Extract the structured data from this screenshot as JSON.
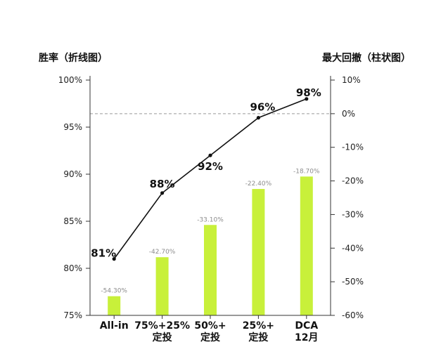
{
  "chart_data": {
    "type": "bar",
    "categories": [
      [
        "All-in"
      ],
      [
        "75%+25%",
        "定投"
      ],
      [
        "50%+",
        "定投"
      ],
      [
        "25%+",
        "定投"
      ],
      [
        "DCA",
        "12月"
      ]
    ],
    "ylabel_left": "胜率（折线图）",
    "ylabel_right": "最大回撤（柱状图）",
    "ylim_left": [
      75,
      100
    ],
    "ylim_right": [
      -60,
      10
    ],
    "yticks_left": {
      "values": [
        100,
        95,
        90,
        85,
        80,
        75
      ],
      "labels": [
        "100%",
        "95%",
        "90%",
        "85%",
        "80%",
        "75%"
      ]
    },
    "yticks_right": {
      "values": [
        10,
        0,
        -10,
        -20,
        -30,
        -40,
        -50,
        -60
      ],
      "labels": [
        "10%",
        "0%",
        "-10%",
        "-20%",
        "-30%",
        "-40%",
        "-50%",
        "-60%"
      ]
    },
    "series": [
      {
        "type": "line",
        "axis": "left",
        "values": [
          81,
          88,
          92,
          96,
          98
        ],
        "labels": [
          "81%",
          "88%",
          "92%",
          "96%",
          "98%"
        ]
      },
      {
        "type": "bar",
        "axis": "right",
        "values": [
          -54.3,
          -42.7,
          -33.1,
          -22.4,
          -18.7
        ],
        "labels": [
          "-54.30%",
          "-42.70%",
          "-33.10%",
          "-22.40%",
          "-18.70%"
        ]
      }
    ],
    "reference_line": {
      "axis": "right",
      "value": 0,
      "style": "dashed"
    },
    "grid": false,
    "legend": "none"
  },
  "colors": {
    "background": "#ffffff",
    "bar": "#c8f03a",
    "line": "#111111",
    "point": "#111111",
    "axis": "#333333",
    "bar_label": "#8c8c8c",
    "reference_line": "#9a9a9a"
  }
}
